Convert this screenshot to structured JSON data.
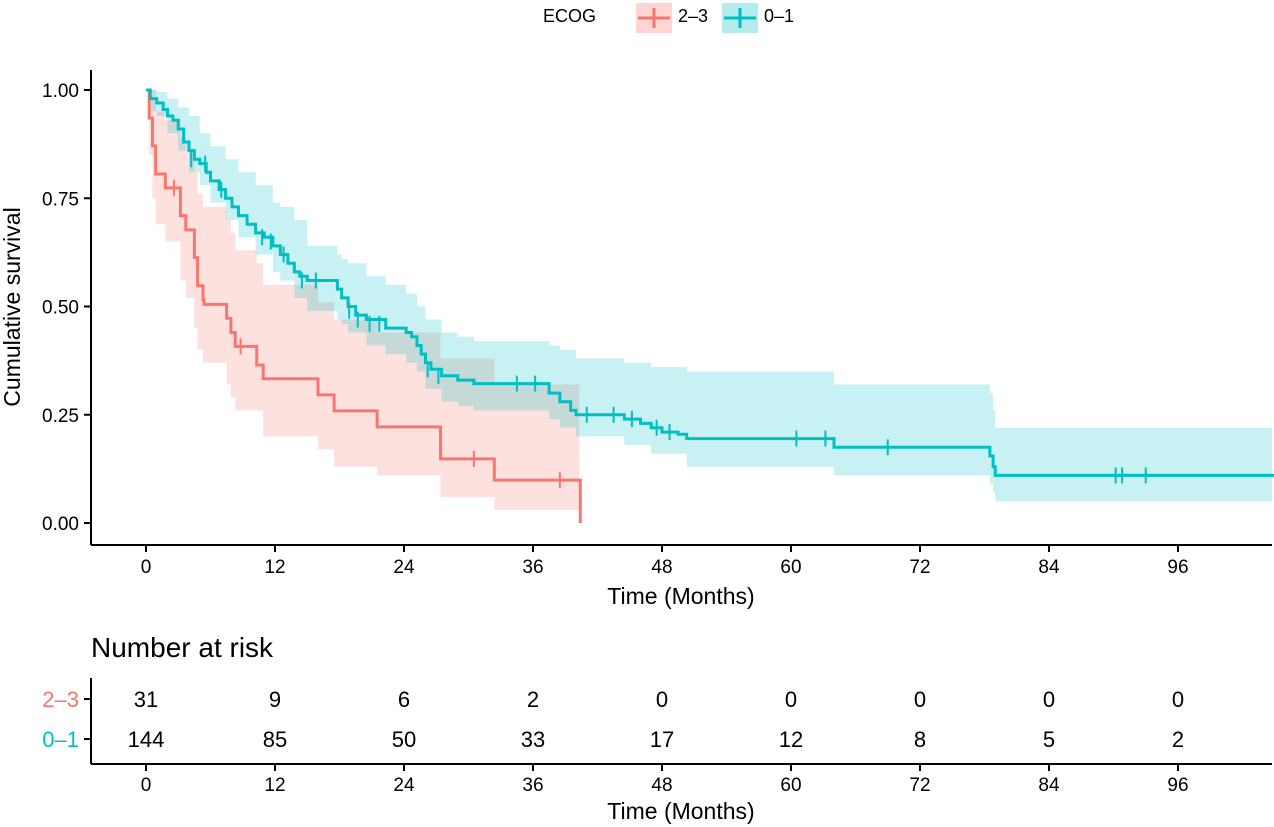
{
  "legend": {
    "title": "ECOG",
    "entries": [
      {
        "label": "2–3",
        "color": "#F8766D"
      },
      {
        "label": "0–1",
        "color": "#00BFC4"
      }
    ]
  },
  "risk_table": {
    "title": "Number at risk",
    "rows": [
      {
        "label": "2–3",
        "color": "#F8766D",
        "values": [
          31,
          9,
          6,
          2,
          0,
          0,
          0,
          0,
          0
        ]
      },
      {
        "label": "0–1",
        "color": "#00BFC4",
        "values": [
          144,
          85,
          50,
          33,
          17,
          12,
          8,
          5,
          2
        ]
      }
    ],
    "xlabel": "Time (Months)"
  },
  "chart_data": {
    "type": "line",
    "subtype": "kaplan-meier",
    "xlabel": "Time (Months)",
    "ylabel": "Cumulative survival",
    "xlim": [
      0,
      105
    ],
    "ylim": [
      0,
      1
    ],
    "xticks": [
      0,
      12,
      24,
      36,
      48,
      60,
      72,
      84,
      96
    ],
    "yticks": [
      0,
      0.25,
      0.5,
      0.75,
      1.0
    ],
    "ytick_labels": [
      "0.00",
      "0.25",
      "0.50",
      "0.75",
      "1.00"
    ],
    "legend_position": "top",
    "series": [
      {
        "name": "2–3",
        "color": "#F8766D",
        "fill": "#F8766D",
        "steps": [
          [
            0,
            1.0
          ],
          [
            0.3,
            0.935
          ],
          [
            0.6,
            0.871
          ],
          [
            0.9,
            0.806
          ],
          [
            1.8,
            0.774
          ],
          [
            2.6,
            0.774
          ],
          [
            3.2,
            0.71
          ],
          [
            3.7,
            0.677
          ],
          [
            4.5,
            0.613
          ],
          [
            4.8,
            0.548
          ],
          [
            5.3,
            0.516
          ],
          [
            5.4,
            0.505
          ],
          [
            7.5,
            0.473
          ],
          [
            7.9,
            0.44
          ],
          [
            8.3,
            0.408
          ],
          [
            10.3,
            0.365
          ],
          [
            10.9,
            0.333
          ],
          [
            16.0,
            0.296
          ],
          [
            17.5,
            0.259
          ],
          [
            21.5,
            0.222
          ],
          [
            27.4,
            0.148
          ],
          [
            32.4,
            0.099
          ],
          [
            40.3,
            0.099
          ],
          [
            40.4,
            0.0
          ]
        ],
        "lower": [
          [
            0,
            1.0
          ],
          [
            0.3,
            0.85
          ],
          [
            0.6,
            0.75
          ],
          [
            0.9,
            0.69
          ],
          [
            1.8,
            0.65
          ],
          [
            3.2,
            0.56
          ],
          [
            3.7,
            0.52
          ],
          [
            4.5,
            0.45
          ],
          [
            4.8,
            0.4
          ],
          [
            5.3,
            0.37
          ],
          [
            7.5,
            0.32
          ],
          [
            7.9,
            0.29
          ],
          [
            8.3,
            0.26
          ],
          [
            10.9,
            0.2
          ],
          [
            16.0,
            0.17
          ],
          [
            17.5,
            0.13
          ],
          [
            21.5,
            0.11
          ],
          [
            27.4,
            0.06
          ],
          [
            32.4,
            0.03
          ],
          [
            40.3,
            0.03
          ]
        ],
        "upper": [
          [
            0,
            1.0
          ],
          [
            0.3,
            1.0
          ],
          [
            0.6,
            1.0
          ],
          [
            0.9,
            0.95
          ],
          [
            1.8,
            0.93
          ],
          [
            3.2,
            0.89
          ],
          [
            3.7,
            0.86
          ],
          [
            4.5,
            0.81
          ],
          [
            4.8,
            0.76
          ],
          [
            5.3,
            0.73
          ],
          [
            7.5,
            0.7
          ],
          [
            7.9,
            0.67
          ],
          [
            8.3,
            0.63
          ],
          [
            10.3,
            0.6
          ],
          [
            10.9,
            0.55
          ],
          [
            16.0,
            0.51
          ],
          [
            17.5,
            0.47
          ],
          [
            21.5,
            0.44
          ],
          [
            27.4,
            0.38
          ],
          [
            32.4,
            0.32
          ],
          [
            40.3,
            0.32
          ]
        ],
        "censored": [
          [
            2.6,
            0.774
          ],
          [
            8.8,
            0.408
          ],
          [
            30.5,
            0.148
          ],
          [
            38.5,
            0.099
          ]
        ]
      },
      {
        "name": "0–1",
        "color": "#00BFC4",
        "fill": "#00BFC4",
        "steps": [
          [
            0,
            1.0
          ],
          [
            0.4,
            0.98
          ],
          [
            1.0,
            0.97
          ],
          [
            1.6,
            0.955
          ],
          [
            2.0,
            0.94
          ],
          [
            2.5,
            0.93
          ],
          [
            3.0,
            0.91
          ],
          [
            3.5,
            0.88
          ],
          [
            4.0,
            0.86
          ],
          [
            4.5,
            0.84
          ],
          [
            5.0,
            0.83
          ],
          [
            5.6,
            0.81
          ],
          [
            6.0,
            0.79
          ],
          [
            6.8,
            0.77
          ],
          [
            7.4,
            0.75
          ],
          [
            8.0,
            0.73
          ],
          [
            8.6,
            0.71
          ],
          [
            9.4,
            0.69
          ],
          [
            10.2,
            0.67
          ],
          [
            11.0,
            0.66
          ],
          [
            11.8,
            0.64
          ],
          [
            12.5,
            0.62
          ],
          [
            13.2,
            0.6
          ],
          [
            13.8,
            0.58
          ],
          [
            14.3,
            0.57
          ],
          [
            15.0,
            0.56
          ],
          [
            17.8,
            0.54
          ],
          [
            18.2,
            0.52
          ],
          [
            18.8,
            0.5
          ],
          [
            19.5,
            0.48
          ],
          [
            20.5,
            0.47
          ],
          [
            22.3,
            0.45
          ],
          [
            24.2,
            0.44
          ],
          [
            24.7,
            0.43
          ],
          [
            25.2,
            0.41
          ],
          [
            25.6,
            0.39
          ],
          [
            26.0,
            0.37
          ],
          [
            26.5,
            0.355
          ],
          [
            27.5,
            0.34
          ],
          [
            29.0,
            0.33
          ],
          [
            30.5,
            0.322
          ],
          [
            37.5,
            0.3
          ],
          [
            38.5,
            0.28
          ],
          [
            39.5,
            0.26
          ],
          [
            40.0,
            0.25
          ],
          [
            44.5,
            0.24
          ],
          [
            46.0,
            0.23
          ],
          [
            47.0,
            0.22
          ],
          [
            48.0,
            0.21
          ],
          [
            49.5,
            0.205
          ],
          [
            50.3,
            0.195
          ],
          [
            64.0,
            0.175
          ],
          [
            78.5,
            0.155
          ],
          [
            78.8,
            0.13
          ],
          [
            79.0,
            0.11
          ],
          [
            105,
            0.11
          ]
        ],
        "lower": [
          [
            0,
            1.0
          ],
          [
            0.4,
            0.95
          ],
          [
            1.0,
            0.94
          ],
          [
            2.0,
            0.9
          ],
          [
            3.0,
            0.86
          ],
          [
            4.0,
            0.81
          ],
          [
            5.0,
            0.78
          ],
          [
            6.0,
            0.74
          ],
          [
            7.4,
            0.7
          ],
          [
            8.6,
            0.66
          ],
          [
            10.2,
            0.62
          ],
          [
            11.8,
            0.58
          ],
          [
            12.5,
            0.56
          ],
          [
            13.8,
            0.52
          ],
          [
            15.0,
            0.49
          ],
          [
            17.8,
            0.47
          ],
          [
            18.2,
            0.46
          ],
          [
            18.8,
            0.44
          ],
          [
            20.5,
            0.41
          ],
          [
            22.3,
            0.39
          ],
          [
            24.2,
            0.37
          ],
          [
            25.2,
            0.35
          ],
          [
            26.0,
            0.31
          ],
          [
            27.5,
            0.28
          ],
          [
            29.0,
            0.27
          ],
          [
            30.5,
            0.26
          ],
          [
            37.5,
            0.24
          ],
          [
            38.5,
            0.22
          ],
          [
            40.0,
            0.2
          ],
          [
            44.5,
            0.18
          ],
          [
            47.0,
            0.16
          ],
          [
            50.3,
            0.13
          ],
          [
            64.0,
            0.11
          ],
          [
            78.5,
            0.09
          ],
          [
            78.8,
            0.07
          ],
          [
            79.0,
            0.05
          ],
          [
            105,
            0.05
          ]
        ],
        "upper": [
          [
            0,
            1.0
          ],
          [
            0.4,
            1.0
          ],
          [
            1.0,
            0.995
          ],
          [
            2.0,
            0.98
          ],
          [
            3.0,
            0.96
          ],
          [
            4.0,
            0.94
          ],
          [
            5.0,
            0.9
          ],
          [
            6.0,
            0.87
          ],
          [
            7.4,
            0.84
          ],
          [
            8.6,
            0.81
          ],
          [
            10.2,
            0.78
          ],
          [
            11.8,
            0.74
          ],
          [
            12.5,
            0.73
          ],
          [
            13.8,
            0.7
          ],
          [
            15.0,
            0.64
          ],
          [
            17.8,
            0.62
          ],
          [
            18.2,
            0.61
          ],
          [
            18.8,
            0.6
          ],
          [
            20.5,
            0.57
          ],
          [
            22.3,
            0.55
          ],
          [
            24.2,
            0.53
          ],
          [
            25.2,
            0.5
          ],
          [
            26.0,
            0.47
          ],
          [
            27.5,
            0.44
          ],
          [
            29.0,
            0.43
          ],
          [
            30.5,
            0.42
          ],
          [
            37.5,
            0.41
          ],
          [
            38.5,
            0.4
          ],
          [
            40.0,
            0.38
          ],
          [
            44.5,
            0.37
          ],
          [
            47.0,
            0.36
          ],
          [
            50.3,
            0.35
          ],
          [
            64.0,
            0.32
          ],
          [
            78.5,
            0.3
          ],
          [
            78.8,
            0.26
          ],
          [
            79.0,
            0.22
          ],
          [
            105,
            0.22
          ]
        ],
        "censored": [
          [
            4.2,
            0.84
          ],
          [
            5.5,
            0.83
          ],
          [
            7.0,
            0.77
          ],
          [
            10.8,
            0.66
          ],
          [
            11.6,
            0.65
          ],
          [
            12.8,
            0.62
          ],
          [
            14.5,
            0.56
          ],
          [
            15.8,
            0.56
          ],
          [
            18.9,
            0.49
          ],
          [
            19.7,
            0.47
          ],
          [
            20.8,
            0.46
          ],
          [
            21.7,
            0.46
          ],
          [
            26.2,
            0.355
          ],
          [
            27.2,
            0.34
          ],
          [
            34.5,
            0.322
          ],
          [
            36.2,
            0.322
          ],
          [
            41.0,
            0.25
          ],
          [
            43.5,
            0.25
          ],
          [
            45.2,
            0.24
          ],
          [
            47.5,
            0.22
          ],
          [
            48.7,
            0.21
          ],
          [
            60.5,
            0.195
          ],
          [
            63.2,
            0.195
          ],
          [
            69.0,
            0.175
          ],
          [
            90.2,
            0.11
          ],
          [
            90.8,
            0.11
          ],
          [
            93.0,
            0.11
          ]
        ]
      }
    ]
  }
}
